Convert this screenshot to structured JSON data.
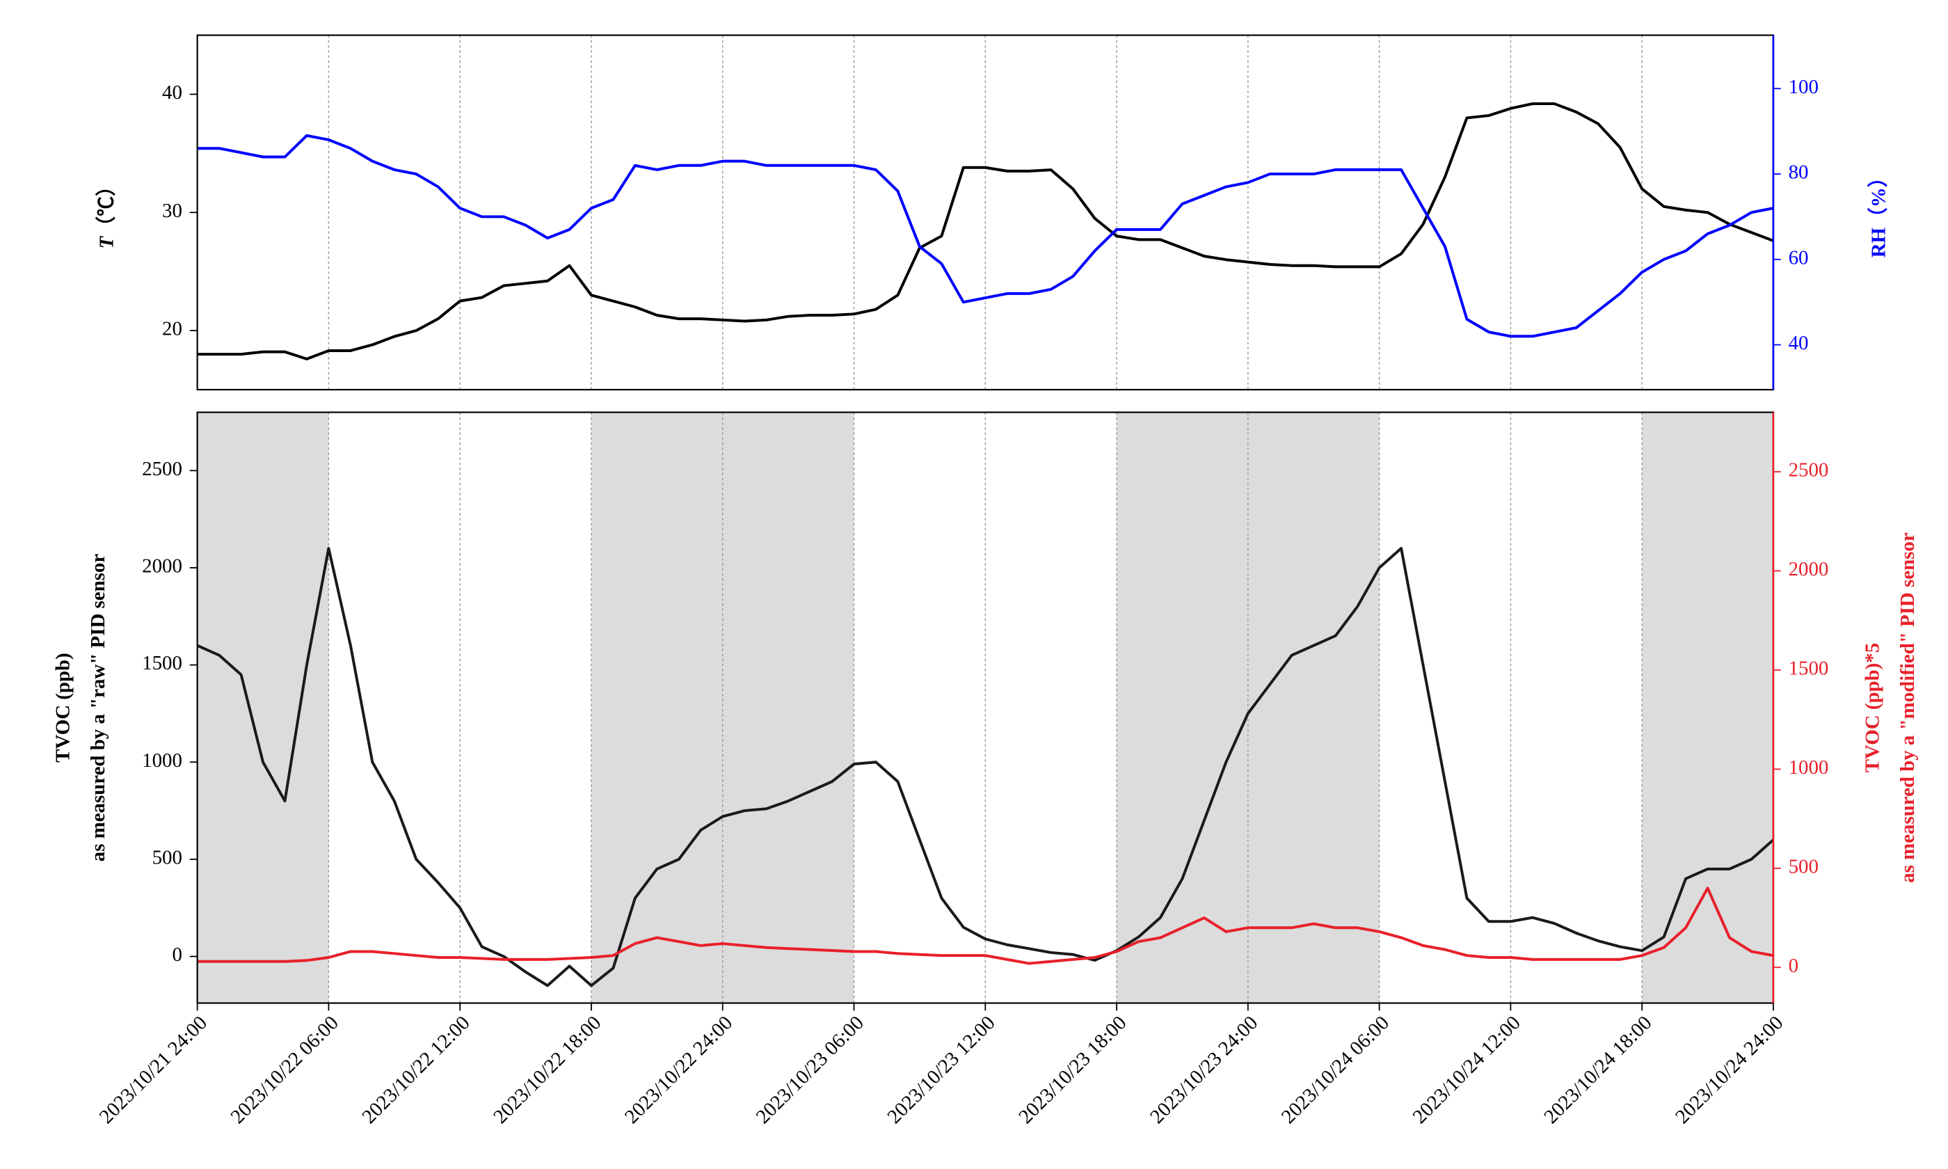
{
  "chart_data": [
    {
      "type": "line",
      "ylabel_parts": [
        "T",
        "（℃）"
      ],
      "y2label_parts": [
        "RH（%）"
      ],
      "xlim": [
        "2023/10/21 24:00",
        "2023/10/24 24:00"
      ],
      "xticks": [
        "2023/10/21 24:00",
        "2023/10/22 06:00",
        "2023/10/22 12:00",
        "2023/10/22 18:00",
        "2023/10/22 24:00",
        "2023/10/23 06:00",
        "2023/10/23 12:00",
        "2023/10/23 18:00",
        "2023/10/23 24:00",
        "2023/10/24 06:00",
        "2023/10/24 12:00",
        "2023/10/24 18:00",
        "2023/10/24 24:00"
      ],
      "x_tick_labels": false,
      "grid": "x",
      "ylim": [
        15,
        45
      ],
      "yticks": [
        20,
        30,
        40
      ],
      "y2lim": [
        29.5,
        112.5
      ],
      "y2ticks": [
        40,
        60,
        80,
        100
      ],
      "x": [
        "2023/10/21 24:00",
        "2023/10/22 01:00",
        "2023/10/22 02:00",
        "2023/10/22 03:00",
        "2023/10/22 04:00",
        "2023/10/22 05:00",
        "2023/10/22 06:00",
        "2023/10/22 07:00",
        "2023/10/22 08:00",
        "2023/10/22 09:00",
        "2023/10/22 10:00",
        "2023/10/22 11:00",
        "2023/10/22 12:00",
        "2023/10/22 13:00",
        "2023/10/22 14:00",
        "2023/10/22 15:00",
        "2023/10/22 16:00",
        "2023/10/22 17:00",
        "2023/10/22 18:00",
        "2023/10/22 19:00",
        "2023/10/22 20:00",
        "2023/10/22 21:00",
        "2023/10/22 22:00",
        "2023/10/22 23:00",
        "2023/10/22 24:00",
        "2023/10/23 01:00",
        "2023/10/23 02:00",
        "2023/10/23 03:00",
        "2023/10/23 04:00",
        "2023/10/23 05:00",
        "2023/10/23 06:00",
        "2023/10/23 07:00",
        "2023/10/23 08:00",
        "2023/10/23 09:00",
        "2023/10/23 10:00",
        "2023/10/23 11:00",
        "2023/10/23 12:00",
        "2023/10/23 13:00",
        "2023/10/23 14:00",
        "2023/10/23 15:00",
        "2023/10/23 16:00",
        "2023/10/23 17:00",
        "2023/10/23 18:00",
        "2023/10/23 19:00",
        "2023/10/23 20:00",
        "2023/10/23 21:00",
        "2023/10/23 22:00",
        "2023/10/23 23:00",
        "2023/10/23 24:00",
        "2023/10/24 01:00",
        "2023/10/24 02:00",
        "2023/10/24 03:00",
        "2023/10/24 04:00",
        "2023/10/24 05:00",
        "2023/10/24 06:00",
        "2023/10/24 07:00",
        "2023/10/24 08:00",
        "2023/10/24 09:00",
        "2023/10/24 10:00",
        "2023/10/24 11:00",
        "2023/10/24 12:00",
        "2023/10/24 13:00",
        "2023/10/24 14:00",
        "2023/10/24 15:00",
        "2023/10/24 16:00",
        "2023/10/24 17:00",
        "2023/10/24 18:00",
        "2023/10/24 19:00",
        "2023/10/24 20:00",
        "2023/10/24 21:00",
        "2023/10/24 22:00",
        "2023/10/24 23:00",
        "2023/10/24 24:00"
      ],
      "series": [
        {
          "color": "#000000",
          "values": [
            18,
            18,
            18,
            18.2,
            18.2,
            17.6,
            18.3,
            18.3,
            18.8,
            19.5,
            20,
            21,
            22.5,
            22.8,
            23.8,
            24,
            24.2,
            25.5,
            23,
            22.5,
            22,
            21.3,
            21,
            21,
            20.9,
            20.8,
            20.9,
            21.2,
            21.3,
            21.3,
            21.4,
            21.8,
            23,
            27,
            28,
            33.8,
            33.8,
            33.5,
            33.5,
            33.6,
            32,
            29.5,
            28,
            27.7,
            27.7,
            27,
            26.3,
            26,
            25.8,
            25.6,
            25.5,
            25.5,
            25.4,
            25.4,
            25.4,
            26.5,
            29,
            33,
            38,
            38.2,
            38.8,
            39.2,
            39.2,
            38.5,
            37.5,
            35.5,
            32,
            30.5,
            30.2,
            30,
            29,
            28.3,
            27.6
          ]
        },
        {
          "color": "#0000ff",
          "axis": "y2",
          "values": [
            86,
            86,
            85,
            84,
            84,
            89,
            88,
            86,
            83,
            81,
            80,
            77,
            72,
            70,
            70,
            68,
            65,
            67,
            72,
            74,
            82,
            81,
            82,
            82,
            83,
            83,
            82,
            82,
            82,
            82,
            82,
            81,
            76,
            63,
            59,
            50,
            51,
            52,
            52,
            53,
            56,
            62,
            67,
            67,
            67,
            73,
            75,
            77,
            78,
            80,
            80,
            80,
            81,
            81,
            81,
            81,
            72,
            63,
            46,
            43,
            42,
            42,
            43,
            44,
            48,
            52,
            57,
            60,
            62,
            66,
            68,
            71,
            72
          ]
        }
      ]
    },
    {
      "type": "line",
      "ylabel_lines": [
        "TVOC (ppb)",
        "as measured by a \"raw\" PID sensor"
      ],
      "y2label_lines": [
        "TVOC (ppb)*5",
        "as measured by a \"modified\" PID sensor"
      ],
      "xlim": [
        "2023/10/21 24:00",
        "2023/10/24 24:00"
      ],
      "xticks": [
        "2023/10/21 24:00",
        "2023/10/22 06:00",
        "2023/10/22 12:00",
        "2023/10/22 18:00",
        "2023/10/22 24:00",
        "2023/10/23 06:00",
        "2023/10/23 12:00",
        "2023/10/23 18:00",
        "2023/10/23 24:00",
        "2023/10/24 06:00",
        "2023/10/24 12:00",
        "2023/10/24 18:00",
        "2023/10/24 24:00"
      ],
      "x_tick_labels": true,
      "grid": "x",
      "shaded_spans": [
        [
          "2023/10/21 24:00",
          "2023/10/22 06:00"
        ],
        [
          "2023/10/22 18:00",
          "2023/10/23 06:00"
        ],
        [
          "2023/10/23 18:00",
          "2023/10/24 06:00"
        ],
        [
          "2023/10/24 18:00",
          "2023/10/24 24:00"
        ]
      ],
      "shade_color": "#dcdcdc",
      "ylim": [
        -240,
        2800
      ],
      "yticks": [
        0,
        500,
        1000,
        1500,
        2000,
        2500
      ],
      "y2lim": [
        -180,
        2800
      ],
      "y2ticks": [
        0,
        500,
        1000,
        1500,
        2000,
        2500
      ],
      "x": [
        "2023/10/21 24:00",
        "2023/10/22 01:00",
        "2023/10/22 02:00",
        "2023/10/22 03:00",
        "2023/10/22 04:00",
        "2023/10/22 05:00",
        "2023/10/22 06:00",
        "2023/10/22 07:00",
        "2023/10/22 08:00",
        "2023/10/22 09:00",
        "2023/10/22 10:00",
        "2023/10/22 11:00",
        "2023/10/22 12:00",
        "2023/10/22 13:00",
        "2023/10/22 14:00",
        "2023/10/22 15:00",
        "2023/10/22 16:00",
        "2023/10/22 17:00",
        "2023/10/22 18:00",
        "2023/10/22 19:00",
        "2023/10/22 20:00",
        "2023/10/22 21:00",
        "2023/10/22 22:00",
        "2023/10/22 23:00",
        "2023/10/22 24:00",
        "2023/10/23 01:00",
        "2023/10/23 02:00",
        "2023/10/23 03:00",
        "2023/10/23 04:00",
        "2023/10/23 05:00",
        "2023/10/23 06:00",
        "2023/10/23 07:00",
        "2023/10/23 08:00",
        "2023/10/23 09:00",
        "2023/10/23 10:00",
        "2023/10/23 11:00",
        "2023/10/23 12:00",
        "2023/10/23 13:00",
        "2023/10/23 14:00",
        "2023/10/23 15:00",
        "2023/10/23 16:00",
        "2023/10/23 17:00",
        "2023/10/23 18:00",
        "2023/10/23 19:00",
        "2023/10/23 20:00",
        "2023/10/23 21:00",
        "2023/10/23 22:00",
        "2023/10/23 23:00",
        "2023/10/23 24:00",
        "2023/10/24 01:00",
        "2023/10/24 02:00",
        "2023/10/24 03:00",
        "2023/10/24 04:00",
        "2023/10/24 05:00",
        "2023/10/24 06:00",
        "2023/10/24 07:00",
        "2023/10/24 08:00",
        "2023/10/24 09:00",
        "2023/10/24 10:00",
        "2023/10/24 11:00",
        "2023/10/24 12:00",
        "2023/10/24 13:00",
        "2023/10/24 14:00",
        "2023/10/24 15:00",
        "2023/10/24 16:00",
        "2023/10/24 17:00",
        "2023/10/24 18:00",
        "2023/10/24 19:00",
        "2023/10/24 20:00",
        "2023/10/24 21:00",
        "2023/10/24 22:00",
        "2023/10/24 23:00",
        "2023/10/24 24:00"
      ],
      "series": [
        {
          "color": "#1a1a1a",
          "values": [
            1600,
            1550,
            1450,
            1000,
            800,
            1500,
            2100,
            1600,
            1000,
            800,
            500,
            380,
            250,
            50,
            0,
            -80,
            -150,
            -50,
            -150,
            -60,
            300,
            450,
            500,
            650,
            720,
            750,
            760,
            800,
            850,
            900,
            990,
            1000,
            900,
            600,
            300,
            150,
            90,
            60,
            40,
            20,
            10,
            -20,
            30,
            100,
            200,
            400,
            700,
            1000,
            1250,
            1400,
            1550,
            1600,
            1650,
            1800,
            2000,
            2100,
            1500,
            900,
            300,
            180,
            180,
            200,
            170,
            120,
            80,
            50,
            30,
            100,
            400,
            450,
            450,
            500,
            600
          ]
        },
        {
          "color": "#e8202a",
          "axis": "y2",
          "values": [
            30,
            30,
            30,
            30,
            30,
            35,
            50,
            80,
            80,
            70,
            60,
            50,
            50,
            45,
            40,
            40,
            40,
            45,
            50,
            60,
            120,
            150,
            130,
            110,
            120,
            110,
            100,
            95,
            90,
            85,
            80,
            80,
            70,
            65,
            60,
            60,
            60,
            40,
            20,
            30,
            40,
            50,
            80,
            130,
            150,
            200,
            250,
            180,
            200,
            200,
            200,
            220,
            200,
            200,
            180,
            150,
            110,
            90,
            60,
            50,
            50,
            40,
            40,
            40,
            40,
            40,
            60,
            100,
            200,
            400,
            150,
            80,
            60
          ]
        }
      ]
    }
  ]
}
